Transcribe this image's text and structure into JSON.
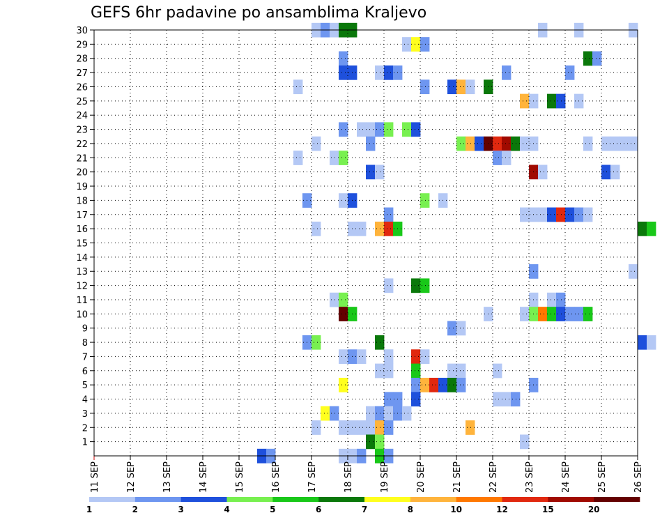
{
  "title": "GEFS 6hr padavine po ansamblima Kraljevo",
  "colors": {
    "grid": "#000000",
    "frame": "#000000",
    "axis_red": "#cc0000"
  },
  "chart_data": {
    "type": "heatmap",
    "title": "GEFS 6hr padavine po ansamblima Kraljevo",
    "xlabel": "",
    "ylabel": "",
    "x_tick_labels": [
      "11 SEP",
      "12 SEP",
      "13 SEP",
      "14 SEP",
      "15 SEP",
      "16 SEP",
      "17 SEP",
      "18 SEP",
      "19 SEP",
      "20 SEP",
      "21 SEP",
      "22 SEP",
      "23 SEP",
      "24 SEP",
      "25 SEP",
      "26 SEP"
    ],
    "y_tick_labels": [
      "1",
      "2",
      "3",
      "4",
      "5",
      "6",
      "7",
      "8",
      "9",
      "10",
      "11",
      "12",
      "13",
      "14",
      "15",
      "16",
      "17",
      "18",
      "19",
      "20",
      "21",
      "22",
      "23",
      "24",
      "25",
      "26",
      "27",
      "28",
      "29",
      "30"
    ],
    "x_range_days": [
      0,
      15
    ],
    "time_step_hours": 6,
    "y_range": [
      0,
      30
    ],
    "grid": true,
    "legend_position": "bottom",
    "levels": [
      "1",
      "2",
      "3",
      "4",
      "5",
      "6",
      "7",
      "8",
      "10",
      "12",
      "15",
      "20"
    ],
    "level_colors": [
      "#b4c8f5",
      "#6e96f0",
      "#1e50dc",
      "#78f050",
      "#19c819",
      "#0a780a",
      "#ffff1e",
      "#ffb43c",
      "#ff7800",
      "#e1280f",
      "#a00a00",
      "#640000"
    ],
    "cells_format": "[member_row, time_step_index, color_class]",
    "cells": [
      [
        30,
        24,
        0
      ],
      [
        30,
        25,
        1
      ],
      [
        30,
        26,
        0
      ],
      [
        30,
        27,
        5
      ],
      [
        30,
        28,
        5
      ],
      [
        30,
        49,
        0
      ],
      [
        30,
        53,
        0
      ],
      [
        30,
        59,
        0
      ],
      [
        29,
        34,
        0
      ],
      [
        29,
        35,
        6
      ],
      [
        29,
        36,
        1
      ],
      [
        28,
        27,
        1
      ],
      [
        28,
        54,
        5
      ],
      [
        28,
        55,
        1
      ],
      [
        27,
        27,
        2
      ],
      [
        27,
        28,
        2
      ],
      [
        27,
        31,
        0
      ],
      [
        27,
        32,
        2
      ],
      [
        27,
        33,
        1
      ],
      [
        27,
        45,
        1
      ],
      [
        27,
        52,
        1
      ],
      [
        26,
        22,
        0
      ],
      [
        26,
        36,
        1
      ],
      [
        26,
        39,
        2
      ],
      [
        26,
        40,
        7
      ],
      [
        26,
        41,
        0
      ],
      [
        26,
        43,
        5
      ],
      [
        25,
        47,
        7
      ],
      [
        25,
        48,
        0
      ],
      [
        25,
        50,
        5
      ],
      [
        25,
        51,
        2
      ],
      [
        25,
        53,
        0
      ],
      [
        23,
        27,
        1
      ],
      [
        23,
        29,
        0
      ],
      [
        23,
        30,
        0
      ],
      [
        23,
        31,
        1
      ],
      [
        23,
        32,
        3
      ],
      [
        23,
        34,
        3
      ],
      [
        23,
        35,
        2
      ],
      [
        22,
        24,
        0
      ],
      [
        22,
        30,
        1
      ],
      [
        22,
        40,
        3
      ],
      [
        22,
        41,
        7
      ],
      [
        22,
        42,
        2
      ],
      [
        22,
        43,
        11
      ],
      [
        22,
        44,
        9
      ],
      [
        22,
        45,
        10
      ],
      [
        22,
        46,
        5
      ],
      [
        22,
        47,
        0
      ],
      [
        22,
        48,
        0
      ],
      [
        22,
        54,
        0
      ],
      [
        22,
        56,
        0
      ],
      [
        22,
        57,
        0
      ],
      [
        22,
        58,
        0
      ],
      [
        22,
        59,
        0
      ],
      [
        21,
        22,
        0
      ],
      [
        21,
        26,
        0
      ],
      [
        21,
        27,
        3
      ],
      [
        21,
        44,
        1
      ],
      [
        21,
        45,
        0
      ],
      [
        20,
        30,
        2
      ],
      [
        20,
        31,
        0
      ],
      [
        20,
        48,
        10
      ],
      [
        20,
        49,
        0
      ],
      [
        20,
        56,
        2
      ],
      [
        20,
        57,
        0
      ],
      [
        18,
        23,
        1
      ],
      [
        18,
        27,
        0
      ],
      [
        18,
        28,
        2
      ],
      [
        18,
        36,
        3
      ],
      [
        18,
        38,
        0
      ],
      [
        17,
        32,
        1
      ],
      [
        17,
        47,
        0
      ],
      [
        17,
        48,
        0
      ],
      [
        17,
        49,
        0
      ],
      [
        17,
        50,
        2
      ],
      [
        17,
        51,
        9
      ],
      [
        17,
        52,
        2
      ],
      [
        17,
        53,
        1
      ],
      [
        17,
        54,
        0
      ],
      [
        16,
        24,
        0
      ],
      [
        16,
        28,
        0
      ],
      [
        16,
        29,
        0
      ],
      [
        16,
        31,
        7
      ],
      [
        16,
        32,
        9
      ],
      [
        16,
        33,
        4
      ],
      [
        16,
        60,
        5
      ],
      [
        16,
        61,
        4
      ],
      [
        13,
        48,
        1
      ],
      [
        13,
        59,
        0
      ],
      [
        12,
        32,
        0
      ],
      [
        12,
        35,
        5
      ],
      [
        12,
        36,
        4
      ],
      [
        11,
        26,
        0
      ],
      [
        11,
        27,
        3
      ],
      [
        11,
        48,
        0
      ],
      [
        11,
        50,
        0
      ],
      [
        11,
        51,
        1
      ],
      [
        10,
        27,
        11
      ],
      [
        10,
        28,
        4
      ],
      [
        10,
        43,
        0
      ],
      [
        10,
        47,
        0
      ],
      [
        10,
        48,
        3
      ],
      [
        10,
        49,
        8
      ],
      [
        10,
        50,
        4
      ],
      [
        10,
        51,
        2
      ],
      [
        10,
        52,
        1
      ],
      [
        10,
        53,
        1
      ],
      [
        10,
        54,
        4
      ],
      [
        9,
        39,
        1
      ],
      [
        9,
        40,
        0
      ],
      [
        8,
        23,
        1
      ],
      [
        8,
        24,
        3
      ],
      [
        8,
        31,
        5
      ],
      [
        8,
        60,
        2
      ],
      [
        8,
        61,
        0
      ],
      [
        7,
        27,
        0
      ],
      [
        7,
        28,
        1
      ],
      [
        7,
        29,
        0
      ],
      [
        7,
        32,
        0
      ],
      [
        7,
        35,
        9
      ],
      [
        7,
        36,
        0
      ],
      [
        6,
        31,
        0
      ],
      [
        6,
        32,
        0
      ],
      [
        6,
        35,
        4
      ],
      [
        6,
        39,
        0
      ],
      [
        6,
        40,
        0
      ],
      [
        6,
        44,
        0
      ],
      [
        5,
        27,
        6
      ],
      [
        5,
        35,
        1
      ],
      [
        5,
        36,
        7
      ],
      [
        5,
        37,
        9
      ],
      [
        5,
        38,
        2
      ],
      [
        5,
        39,
        5
      ],
      [
        5,
        40,
        1
      ],
      [
        5,
        48,
        1
      ],
      [
        4,
        32,
        1
      ],
      [
        4,
        33,
        1
      ],
      [
        4,
        35,
        2
      ],
      [
        4,
        44,
        0
      ],
      [
        4,
        45,
        0
      ],
      [
        4,
        46,
        1
      ],
      [
        3,
        25,
        6
      ],
      [
        3,
        26,
        1
      ],
      [
        3,
        30,
        0
      ],
      [
        3,
        31,
        1
      ],
      [
        3,
        32,
        0
      ],
      [
        3,
        33,
        1
      ],
      [
        3,
        34,
        0
      ],
      [
        2,
        24,
        0
      ],
      [
        2,
        27,
        0
      ],
      [
        2,
        28,
        0
      ],
      [
        2,
        29,
        0
      ],
      [
        2,
        30,
        0
      ],
      [
        2,
        31,
        7
      ],
      [
        2,
        32,
        1
      ],
      [
        2,
        41,
        7
      ],
      [
        1,
        30,
        5
      ],
      [
        1,
        31,
        3
      ],
      [
        1,
        47,
        0
      ],
      [
        0,
        18,
        2
      ],
      [
        0,
        19,
        1
      ],
      [
        0,
        27,
        0
      ],
      [
        0,
        28,
        0
      ],
      [
        0,
        29,
        1
      ],
      [
        0,
        31,
        4
      ],
      [
        0,
        32,
        1
      ]
    ]
  }
}
